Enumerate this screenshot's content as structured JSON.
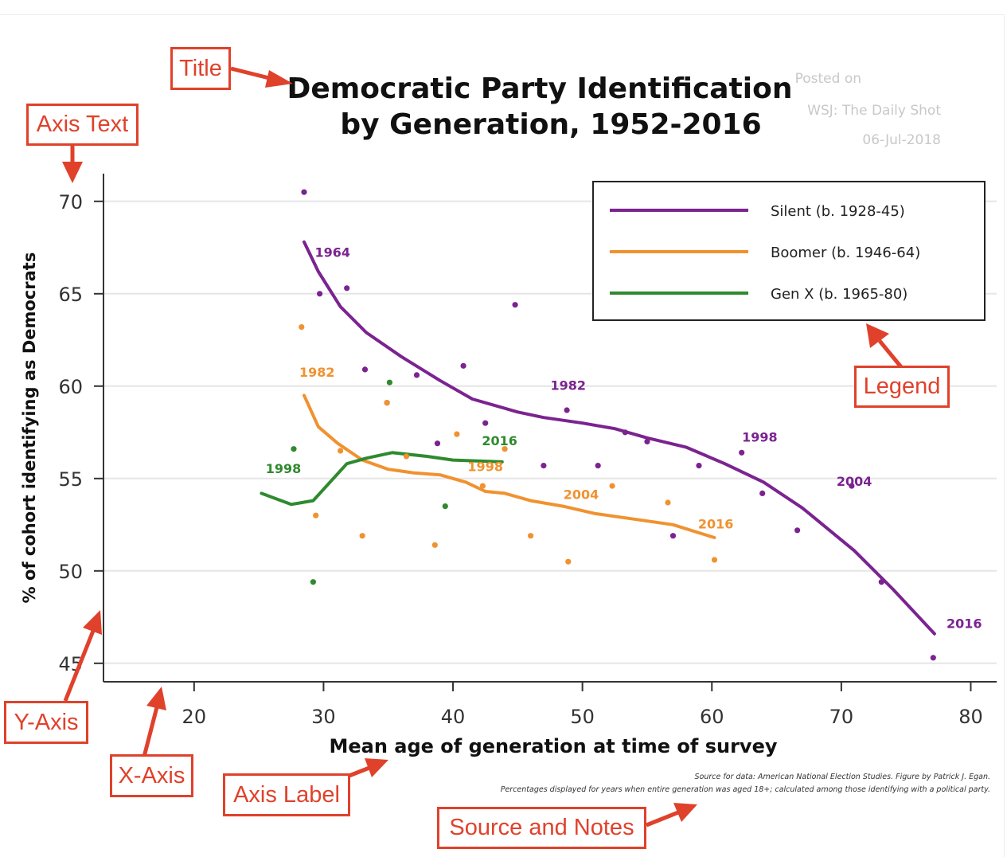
{
  "chart_data": {
    "type": "scatter",
    "title_line1": "Democratic Party Identification",
    "title_line2": "by Generation, 1952-2016",
    "xlabel": "Mean age of generation at time of survey",
    "ylabel": "% of cohort identifying as Democrats",
    "xlim": [
      13,
      82
    ],
    "ylim": [
      44,
      71.5
    ],
    "xticks": [
      20,
      30,
      40,
      50,
      60,
      70,
      80
    ],
    "yticks": [
      45,
      50,
      55,
      60,
      65,
      70
    ],
    "grid": "horizontal",
    "legend_position": "top-right",
    "series": [
      {
        "name": "Silent (b. 1928-45)",
        "color": "#7b2390",
        "points": [
          [
            28.5,
            70.5
          ],
          [
            29.7,
            65
          ],
          [
            31.8,
            65.3
          ],
          [
            33.2,
            60.9
          ],
          [
            34.9,
            59.1
          ],
          [
            37.2,
            60.6
          ],
          [
            38.8,
            56.9
          ],
          [
            40.8,
            61.1
          ],
          [
            42.5,
            58
          ],
          [
            44.8,
            64.4
          ],
          [
            47,
            55.7
          ],
          [
            48.8,
            58.7
          ],
          [
            51.2,
            55.7
          ],
          [
            53.3,
            57.5
          ],
          [
            55,
            57
          ],
          [
            57,
            51.9
          ],
          [
            59,
            55.7
          ],
          [
            62.3,
            56.4
          ],
          [
            63.9,
            54.2
          ],
          [
            66.6,
            52.2
          ],
          [
            70.8,
            54.6
          ],
          [
            73.1,
            49.4
          ],
          [
            77.1,
            45.3
          ]
        ],
        "trend": [
          [
            28.5,
            67.8
          ],
          [
            29.6,
            66.2
          ],
          [
            31.3,
            64.3
          ],
          [
            33.3,
            62.9
          ],
          [
            36,
            61.6
          ],
          [
            39,
            60.3
          ],
          [
            41.5,
            59.3
          ],
          [
            45,
            58.6
          ],
          [
            47,
            58.3
          ],
          [
            50,
            58
          ],
          [
            52.5,
            57.7
          ],
          [
            55,
            57.2
          ],
          [
            58,
            56.7
          ],
          [
            61,
            55.8
          ],
          [
            64,
            54.8
          ],
          [
            67,
            53.4
          ],
          [
            71,
            51.1
          ],
          [
            74,
            49
          ],
          [
            77.2,
            46.6
          ]
        ],
        "labels": [
          {
            "x": 30.7,
            "y": 67,
            "text": "1964"
          },
          {
            "x": 48.9,
            "y": 59.8,
            "text": "1982"
          },
          {
            "x": 63.7,
            "y": 57,
            "text": "1998"
          },
          {
            "x": 71,
            "y": 54.6,
            "text": "2004"
          },
          {
            "x": 79.5,
            "y": 46.9,
            "text": "2016"
          }
        ]
      },
      {
        "name": "Boomer (b. 1946-64)",
        "color": "#f0922f",
        "points": [
          [
            28.3,
            63.2
          ],
          [
            29.4,
            53
          ],
          [
            31.3,
            56.5
          ],
          [
            33,
            51.9
          ],
          [
            34.9,
            59.1
          ],
          [
            36.4,
            56.2
          ],
          [
            38.6,
            51.4
          ],
          [
            40.3,
            57.4
          ],
          [
            42.3,
            54.6
          ],
          [
            44,
            56.6
          ],
          [
            46,
            51.9
          ],
          [
            48.9,
            50.5
          ],
          [
            52.3,
            54.6
          ],
          [
            56.6,
            53.7
          ],
          [
            60.2,
            50.6
          ]
        ],
        "trend": [
          [
            28.5,
            59.5
          ],
          [
            29.6,
            57.8
          ],
          [
            31.1,
            56.9
          ],
          [
            33,
            56
          ],
          [
            35,
            55.5
          ],
          [
            37,
            55.3
          ],
          [
            39,
            55.2
          ],
          [
            41,
            54.8
          ],
          [
            42.5,
            54.3
          ],
          [
            44,
            54.2
          ],
          [
            46,
            53.8
          ],
          [
            48.5,
            53.5
          ],
          [
            51,
            53.1
          ],
          [
            54,
            52.8
          ],
          [
            57,
            52.5
          ],
          [
            60.2,
            51.8
          ]
        ],
        "labels": [
          {
            "x": 29.5,
            "y": 60.5,
            "text": "1982"
          },
          {
            "x": 42.5,
            "y": 55.4,
            "text": "1998"
          },
          {
            "x": 49.9,
            "y": 53.9,
            "text": "2004"
          },
          {
            "x": 60.3,
            "y": 52.3,
            "text": "2016"
          }
        ]
      },
      {
        "name": "Gen X (b. 1965-80)",
        "color": "#2f8a2f",
        "points": [
          [
            27.7,
            56.6
          ],
          [
            29.2,
            49.4
          ],
          [
            35.1,
            60.2
          ],
          [
            39.4,
            53.5
          ]
        ],
        "trend": [
          [
            25.2,
            54.2
          ],
          [
            27.5,
            53.6
          ],
          [
            29.2,
            53.8
          ],
          [
            31.8,
            55.8
          ],
          [
            33.3,
            56.1
          ],
          [
            35.3,
            56.4
          ],
          [
            38,
            56.2
          ],
          [
            40,
            56
          ],
          [
            43.8,
            55.9
          ]
        ],
        "labels": [
          {
            "x": 26.9,
            "y": 55.3,
            "text": "1998"
          },
          {
            "x": 43.6,
            "y": 56.8,
            "text": "2016"
          }
        ]
      }
    ],
    "watermark": [
      "Posted on",
      "WSJ: The Daily Shot",
      "06-Jul-2018"
    ],
    "source_notes": [
      "Source for data: American National Election Studies. Figure by Patrick J. Egan.",
      "Percentages displayed for years when entire generation was aged 18+; calculated among those identifying with a political party."
    ]
  },
  "callouts": {
    "title": "Title",
    "axis_text": "Axis Text",
    "legend": "Legend",
    "y_axis": "Y-Axis",
    "x_axis": "X-Axis",
    "axis_label": "Axis Label",
    "source_notes": "Source and Notes"
  },
  "colors": {
    "accent_callout": "#e0412b"
  }
}
